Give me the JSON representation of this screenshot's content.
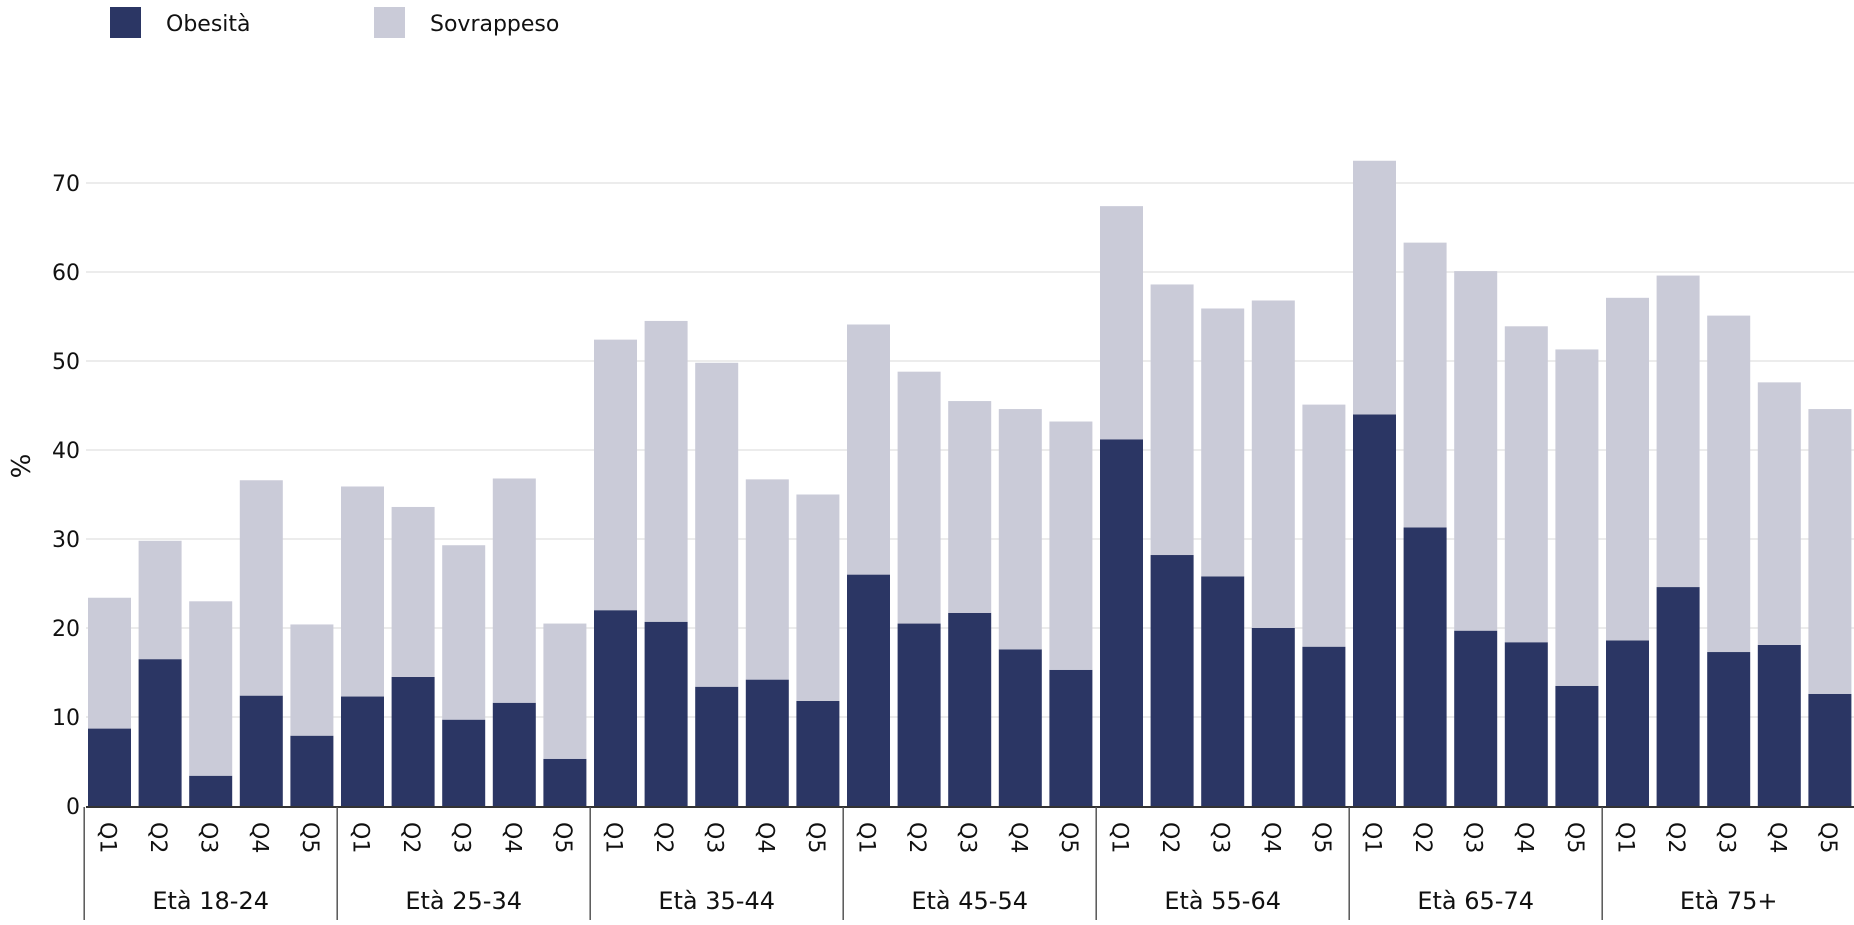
{
  "chart_data": {
    "type": "bar",
    "stacked": true,
    "title": "",
    "xlabel": "",
    "ylabel": "%",
    "ylim": [
      0,
      72
    ],
    "yticks": [
      0,
      10,
      20,
      30,
      40,
      50,
      60,
      70
    ],
    "grid": true,
    "legend_position": "top-left",
    "groups": [
      "Età 18-24",
      "Età 25-34",
      "Età 35-44",
      "Età 45-54",
      "Età 55-64",
      "Età 65-74",
      "Età 75+"
    ],
    "quintiles": [
      "Q1",
      "Q2",
      "Q3",
      "Q4",
      "Q5"
    ],
    "series": [
      {
        "name": "Obesità",
        "color": "#2b3664",
        "values": [
          8.7,
          16.5,
          3.4,
          12.4,
          7.9,
          12.3,
          14.5,
          9.7,
          11.6,
          5.3,
          22.0,
          20.7,
          13.4,
          14.2,
          11.8,
          26.0,
          20.5,
          21.7,
          17.6,
          15.3,
          41.2,
          28.2,
          25.8,
          20.0,
          17.9,
          44.0,
          31.3,
          19.7,
          18.4,
          13.5,
          18.6,
          24.6,
          17.3,
          18.1,
          12.6
        ]
      },
      {
        "name": "Sovrappeso",
        "color": "#cacbd8",
        "values": [
          14.7,
          13.3,
          19.6,
          24.2,
          12.5,
          23.6,
          19.1,
          19.6,
          25.2,
          15.2,
          30.4,
          33.8,
          36.4,
          22.5,
          23.2,
          28.1,
          28.3,
          23.8,
          27.0,
          27.9,
          26.2,
          30.4,
          30.1,
          36.8,
          27.2,
          28.5,
          32.0,
          40.4,
          35.5,
          37.8,
          38.5,
          35.0,
          37.8,
          29.5,
          32.0
        ]
      }
    ]
  }
}
